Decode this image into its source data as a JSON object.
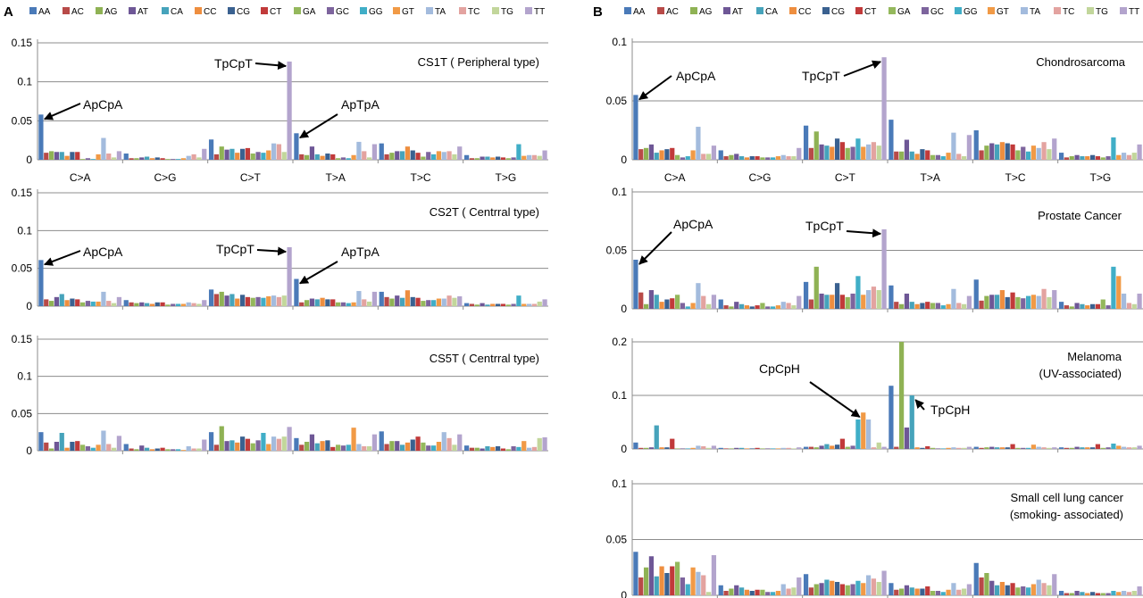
{
  "panel_labels": [
    "A",
    "B"
  ],
  "legend": {
    "entries": [
      "AA",
      "AC",
      "AG",
      "AT",
      "CA",
      "CC",
      "CG",
      "CT",
      "GA",
      "GC",
      "GG",
      "GT",
      "TA",
      "TC",
      "TG",
      "TT"
    ],
    "colors": [
      "#4a7ab8",
      "#b84a48",
      "#8fb254",
      "#6e5796",
      "#46a3bb",
      "#ee8e3f",
      "#3a6190",
      "#c13a3a",
      "#94b85c",
      "#7d649d",
      "#40aec7",
      "#f19a46",
      "#a3bbdd",
      "#e3a3a0",
      "#c2d69b",
      "#b3a4cd"
    ]
  },
  "chart_data": [
    {
      "type": "bar",
      "panel": "A",
      "title": "CS1T ( Peripheral type)",
      "groups": [
        "C>A",
        "C>G",
        "C>T",
        "T>A",
        "T>C",
        "T>G"
      ],
      "show_group_labels": true,
      "ylim": [
        0,
        0.15
      ],
      "yticks": [
        0,
        0.05,
        0.1,
        0.15
      ],
      "ytick_labels": [
        "0",
        "0.05",
        "0.1",
        "0.15"
      ],
      "grid": true,
      "values": [
        [
          0.058,
          0.009,
          0.011,
          0.01,
          0.01,
          0.005,
          0.01,
          0.01,
          0.001,
          0.002,
          0.001,
          0.007,
          0.028,
          0.008,
          0.003,
          0.011
        ],
        [
          0.008,
          0.002,
          0.002,
          0.003,
          0.004,
          0.002,
          0.003,
          0.002,
          0.001,
          0.001,
          0.001,
          0.002,
          0.005,
          0.007,
          0.003,
          0.014
        ],
        [
          0.026,
          0.007,
          0.017,
          0.013,
          0.014,
          0.009,
          0.014,
          0.015,
          0.008,
          0.01,
          0.009,
          0.012,
          0.021,
          0.02,
          0.01,
          0.126
        ],
        [
          0.034,
          0.007,
          0.006,
          0.017,
          0.007,
          0.005,
          0.008,
          0.007,
          0.002,
          0.003,
          0.002,
          0.006,
          0.023,
          0.011,
          0.003,
          0.02
        ],
        [
          0.021,
          0.007,
          0.009,
          0.011,
          0.011,
          0.017,
          0.012,
          0.009,
          0.004,
          0.01,
          0.007,
          0.011,
          0.01,
          0.011,
          0.007,
          0.017
        ],
        [
          0.006,
          0.002,
          0.002,
          0.004,
          0.004,
          0.003,
          0.004,
          0.003,
          0.002,
          0.003,
          0.02,
          0.005,
          0.006,
          0.006,
          0.005,
          0.012
        ]
      ],
      "annotations": [
        {
          "text": "ApCpA",
          "group": 0,
          "bar": 0
        },
        {
          "text": "TpCpT",
          "group": 2,
          "bar": 15
        },
        {
          "text": "ApTpA",
          "group": 3,
          "bar": 0
        }
      ]
    },
    {
      "type": "bar",
      "panel": "A",
      "title": "CS2T ( Centrral type)",
      "groups": [
        "C>A",
        "C>G",
        "C>T",
        "T>A",
        "T>C",
        "T>G"
      ],
      "show_group_labels": false,
      "ylim": [
        0,
        0.15
      ],
      "yticks": [
        0,
        0.05,
        0.1,
        0.15
      ],
      "ytick_labels": [
        "0",
        "0.05",
        "0.1",
        "0.15"
      ],
      "grid": true,
      "values": [
        [
          0.061,
          0.009,
          0.007,
          0.012,
          0.016,
          0.008,
          0.01,
          0.009,
          0.005,
          0.007,
          0.006,
          0.006,
          0.019,
          0.007,
          0.004,
          0.012
        ],
        [
          0.008,
          0.005,
          0.004,
          0.005,
          0.004,
          0.003,
          0.005,
          0.005,
          0.002,
          0.003,
          0.003,
          0.003,
          0.005,
          0.004,
          0.003,
          0.008
        ],
        [
          0.022,
          0.016,
          0.019,
          0.014,
          0.016,
          0.01,
          0.015,
          0.012,
          0.011,
          0.012,
          0.011,
          0.013,
          0.014,
          0.012,
          0.014,
          0.078
        ],
        [
          0.036,
          0.005,
          0.008,
          0.01,
          0.009,
          0.011,
          0.009,
          0.009,
          0.005,
          0.005,
          0.004,
          0.005,
          0.02,
          0.009,
          0.006,
          0.019
        ],
        [
          0.019,
          0.012,
          0.01,
          0.014,
          0.011,
          0.021,
          0.012,
          0.011,
          0.007,
          0.008,
          0.008,
          0.01,
          0.01,
          0.014,
          0.011,
          0.013
        ],
        [
          0.004,
          0.003,
          0.002,
          0.004,
          0.002,
          0.003,
          0.003,
          0.003,
          0.002,
          0.003,
          0.014,
          0.003,
          0.003,
          0.003,
          0.006,
          0.009
        ]
      ],
      "annotations": [
        {
          "text": "ApCpA",
          "group": 0,
          "bar": 0
        },
        {
          "text": "TpCpT",
          "group": 2,
          "bar": 15
        },
        {
          "text": "ApTpA",
          "group": 3,
          "bar": 0
        }
      ]
    },
    {
      "type": "bar",
      "panel": "A",
      "title": "CS5T ( Centrral type)",
      "groups": [
        "C>A",
        "C>G",
        "C>T",
        "T>A",
        "T>C",
        "T>G"
      ],
      "show_group_labels": false,
      "ylim": [
        0,
        0.15
      ],
      "yticks": [
        0,
        0.05,
        0.1,
        0.15
      ],
      "ytick_labels": [
        "0",
        "0.05",
        "0.1",
        "0.15"
      ],
      "grid": true,
      "values": [
        [
          0.025,
          0.011,
          0.003,
          0.012,
          0.024,
          0.004,
          0.012,
          0.013,
          0.008,
          0.006,
          0.004,
          0.008,
          0.027,
          0.009,
          0.004,
          0.02
        ],
        [
          0.009,
          0.003,
          0.002,
          0.007,
          0.004,
          0.002,
          0.003,
          0.004,
          0.002,
          0.002,
          0.002,
          0.001,
          0.006,
          0.003,
          0.003,
          0.015
        ],
        [
          0.025,
          0.008,
          0.033,
          0.013,
          0.014,
          0.011,
          0.019,
          0.016,
          0.01,
          0.014,
          0.024,
          0.009,
          0.019,
          0.016,
          0.019,
          0.032
        ],
        [
          0.017,
          0.008,
          0.012,
          0.022,
          0.01,
          0.013,
          0.014,
          0.005,
          0.008,
          0.007,
          0.008,
          0.031,
          0.009,
          0.006,
          0.006,
          0.022
        ],
        [
          0.026,
          0.009,
          0.013,
          0.013,
          0.008,
          0.011,
          0.015,
          0.019,
          0.011,
          0.007,
          0.007,
          0.012,
          0.025,
          0.017,
          0.008,
          0.022
        ],
        [
          0.007,
          0.004,
          0.004,
          0.003,
          0.006,
          0.005,
          0.006,
          0.003,
          0.002,
          0.006,
          0.005,
          0.013,
          0.004,
          0.005,
          0.017,
          0.018
        ]
      ],
      "annotations": []
    },
    {
      "type": "bar",
      "panel": "B",
      "title": "Chondrosarcoma",
      "groups": [
        "C>A",
        "C>G",
        "C>T",
        "T>A",
        "T>C",
        "T>G"
      ],
      "show_group_labels": true,
      "ylim": [
        0,
        0.1
      ],
      "yticks": [
        0,
        0.05,
        0.1
      ],
      "ytick_labels": [
        "0",
        "0.05",
        "0.1"
      ],
      "grid": true,
      "values": [
        [
          0.055,
          0.009,
          0.01,
          0.013,
          0.006,
          0.008,
          0.009,
          0.01,
          0.004,
          0.002,
          0.003,
          0.008,
          0.028,
          0.005,
          0.005,
          0.012
        ],
        [
          0.008,
          0.003,
          0.004,
          0.005,
          0.003,
          0.002,
          0.003,
          0.003,
          0.002,
          0.002,
          0.002,
          0.003,
          0.004,
          0.003,
          0.003,
          0.01
        ],
        [
          0.029,
          0.01,
          0.024,
          0.013,
          0.012,
          0.011,
          0.018,
          0.015,
          0.01,
          0.011,
          0.018,
          0.011,
          0.013,
          0.015,
          0.012,
          0.087
        ],
        [
          0.034,
          0.007,
          0.007,
          0.017,
          0.007,
          0.005,
          0.009,
          0.008,
          0.004,
          0.004,
          0.003,
          0.006,
          0.023,
          0.005,
          0.003,
          0.021
        ],
        [
          0.025,
          0.008,
          0.012,
          0.014,
          0.013,
          0.015,
          0.014,
          0.013,
          0.008,
          0.011,
          0.007,
          0.012,
          0.01,
          0.015,
          0.009,
          0.018
        ],
        [
          0.006,
          0.002,
          0.003,
          0.004,
          0.003,
          0.003,
          0.004,
          0.003,
          0.002,
          0.003,
          0.019,
          0.004,
          0.006,
          0.004,
          0.006,
          0.013
        ]
      ],
      "annotations": [
        {
          "text": "ApCpA",
          "group": 0,
          "bar": 0
        },
        {
          "text": "TpCpT",
          "group": 2,
          "bar": 15
        }
      ]
    },
    {
      "type": "bar",
      "panel": "B",
      "title": "Prostate  Cancer",
      "groups": [
        "C>A",
        "C>G",
        "C>T",
        "T>A",
        "T>C",
        "T>G"
      ],
      "show_group_labels": false,
      "ylim": [
        0,
        0.1
      ],
      "yticks": [
        0,
        0.05,
        0.1
      ],
      "ytick_labels": [
        "0",
        "0.05",
        "0.1"
      ],
      "grid": true,
      "values": [
        [
          0.042,
          0.014,
          0.004,
          0.016,
          0.012,
          0.006,
          0.008,
          0.009,
          0.012,
          0.005,
          0.002,
          0.005,
          0.022,
          0.011,
          0.004,
          0.012
        ],
        [
          0.008,
          0.003,
          0.002,
          0.006,
          0.004,
          0.003,
          0.002,
          0.003,
          0.005,
          0.002,
          0.002,
          0.003,
          0.006,
          0.005,
          0.003,
          0.011
        ],
        [
          0.023,
          0.008,
          0.036,
          0.013,
          0.012,
          0.012,
          0.022,
          0.012,
          0.01,
          0.013,
          0.028,
          0.012,
          0.016,
          0.019,
          0.016,
          0.068
        ],
        [
          0.02,
          0.006,
          0.004,
          0.013,
          0.006,
          0.004,
          0.005,
          0.006,
          0.005,
          0.005,
          0.003,
          0.004,
          0.017,
          0.005,
          0.004,
          0.011
        ],
        [
          0.025,
          0.007,
          0.011,
          0.012,
          0.012,
          0.016,
          0.01,
          0.014,
          0.01,
          0.009,
          0.011,
          0.012,
          0.011,
          0.017,
          0.01,
          0.016
        ],
        [
          0.006,
          0.003,
          0.002,
          0.005,
          0.004,
          0.003,
          0.004,
          0.004,
          0.008,
          0.003,
          0.036,
          0.028,
          0.013,
          0.005,
          0.004,
          0.013
        ]
      ],
      "annotations": [
        {
          "text": "ApCpA",
          "group": 0,
          "bar": 0
        },
        {
          "text": "TpCpT",
          "group": 2,
          "bar": 15
        }
      ]
    },
    {
      "type": "bar",
      "panel": "B",
      "title": "Melanoma (UV-associated)",
      "title_lines": [
        "Melanoma",
        "(UV-associated)"
      ],
      "groups": [
        "C>A",
        "C>G",
        "C>T",
        "T>A",
        "T>C",
        "T>G"
      ],
      "show_group_labels": false,
      "ylim": [
        0,
        0.2
      ],
      "yticks": [
        0,
        0.1,
        0.2
      ],
      "ytick_labels": [
        "0",
        "0.1",
        "0.2"
      ],
      "grid": true,
      "values": [
        [
          0.012,
          0.002,
          0.002,
          0.003,
          0.044,
          0.003,
          0.003,
          0.019,
          0.001,
          0.001,
          0.001,
          0.002,
          0.006,
          0.005,
          0.002,
          0.006
        ],
        [
          0.002,
          0.001,
          0.001,
          0.002,
          0.002,
          0.001,
          0.001,
          0.002,
          0.001,
          0.001,
          0.001,
          0.001,
          0.002,
          0.002,
          0.001,
          0.003
        ],
        [
          0.004,
          0.004,
          0.003,
          0.006,
          0.009,
          0.006,
          0.008,
          0.019,
          0.004,
          0.006,
          0.055,
          0.068,
          0.055,
          0.003,
          0.012,
          0.004
        ],
        [
          0.118,
          0.004,
          0.2,
          0.04,
          0.1,
          0.003,
          0.002,
          0.005,
          0.002,
          0.001,
          0.001,
          0.002,
          0.003,
          0.002,
          0.002,
          0.004
        ],
        [
          0.004,
          0.002,
          0.003,
          0.004,
          0.003,
          0.003,
          0.003,
          0.009,
          0.002,
          0.002,
          0.002,
          0.008,
          0.004,
          0.003,
          0.002,
          0.003
        ],
        [
          0.003,
          0.002,
          0.002,
          0.004,
          0.003,
          0.003,
          0.003,
          0.009,
          0.002,
          0.003,
          0.01,
          0.006,
          0.004,
          0.003,
          0.003,
          0.006
        ]
      ],
      "annotations": [
        {
          "text": "CpCpH",
          "group": 2,
          "bar": 11
        },
        {
          "text": "TpCpH",
          "group": 3,
          "bar": 4
        }
      ]
    },
    {
      "type": "bar",
      "panel": "B",
      "title": "Small cell lung cancer (smoking- associated)",
      "title_lines": [
        "Small cell lung cancer",
        "(smoking- associated)"
      ],
      "groups": [
        "C>A",
        "C>G",
        "C>T",
        "T>A",
        "T>C",
        "T>G"
      ],
      "show_group_labels": false,
      "ylim": [
        0,
        0.1
      ],
      "yticks": [
        0,
        0.05,
        0.1
      ],
      "ytick_labels": [
        "0",
        "0.05",
        "0.1"
      ],
      "grid": true,
      "values": [
        [
          0.039,
          0.016,
          0.025,
          0.035,
          0.017,
          0.026,
          0.02,
          0.026,
          0.03,
          0.016,
          0.01,
          0.025,
          0.021,
          0.018,
          0.003,
          0.036
        ],
        [
          0.009,
          0.004,
          0.006,
          0.009,
          0.007,
          0.005,
          0.004,
          0.005,
          0.005,
          0.003,
          0.003,
          0.004,
          0.01,
          0.006,
          0.007,
          0.016
        ],
        [
          0.019,
          0.007,
          0.01,
          0.011,
          0.014,
          0.013,
          0.012,
          0.01,
          0.009,
          0.01,
          0.013,
          0.011,
          0.018,
          0.015,
          0.012,
          0.022
        ],
        [
          0.011,
          0.005,
          0.006,
          0.009,
          0.007,
          0.006,
          0.006,
          0.008,
          0.004,
          0.004,
          0.003,
          0.005,
          0.011,
          0.005,
          0.006,
          0.01
        ],
        [
          0.029,
          0.016,
          0.02,
          0.013,
          0.009,
          0.012,
          0.009,
          0.011,
          0.007,
          0.008,
          0.007,
          0.01,
          0.014,
          0.011,
          0.009,
          0.019
        ],
        [
          0.004,
          0.002,
          0.002,
          0.004,
          0.003,
          0.002,
          0.003,
          0.002,
          0.002,
          0.002,
          0.004,
          0.003,
          0.004,
          0.003,
          0.004,
          0.008
        ]
      ],
      "annotations": []
    }
  ]
}
